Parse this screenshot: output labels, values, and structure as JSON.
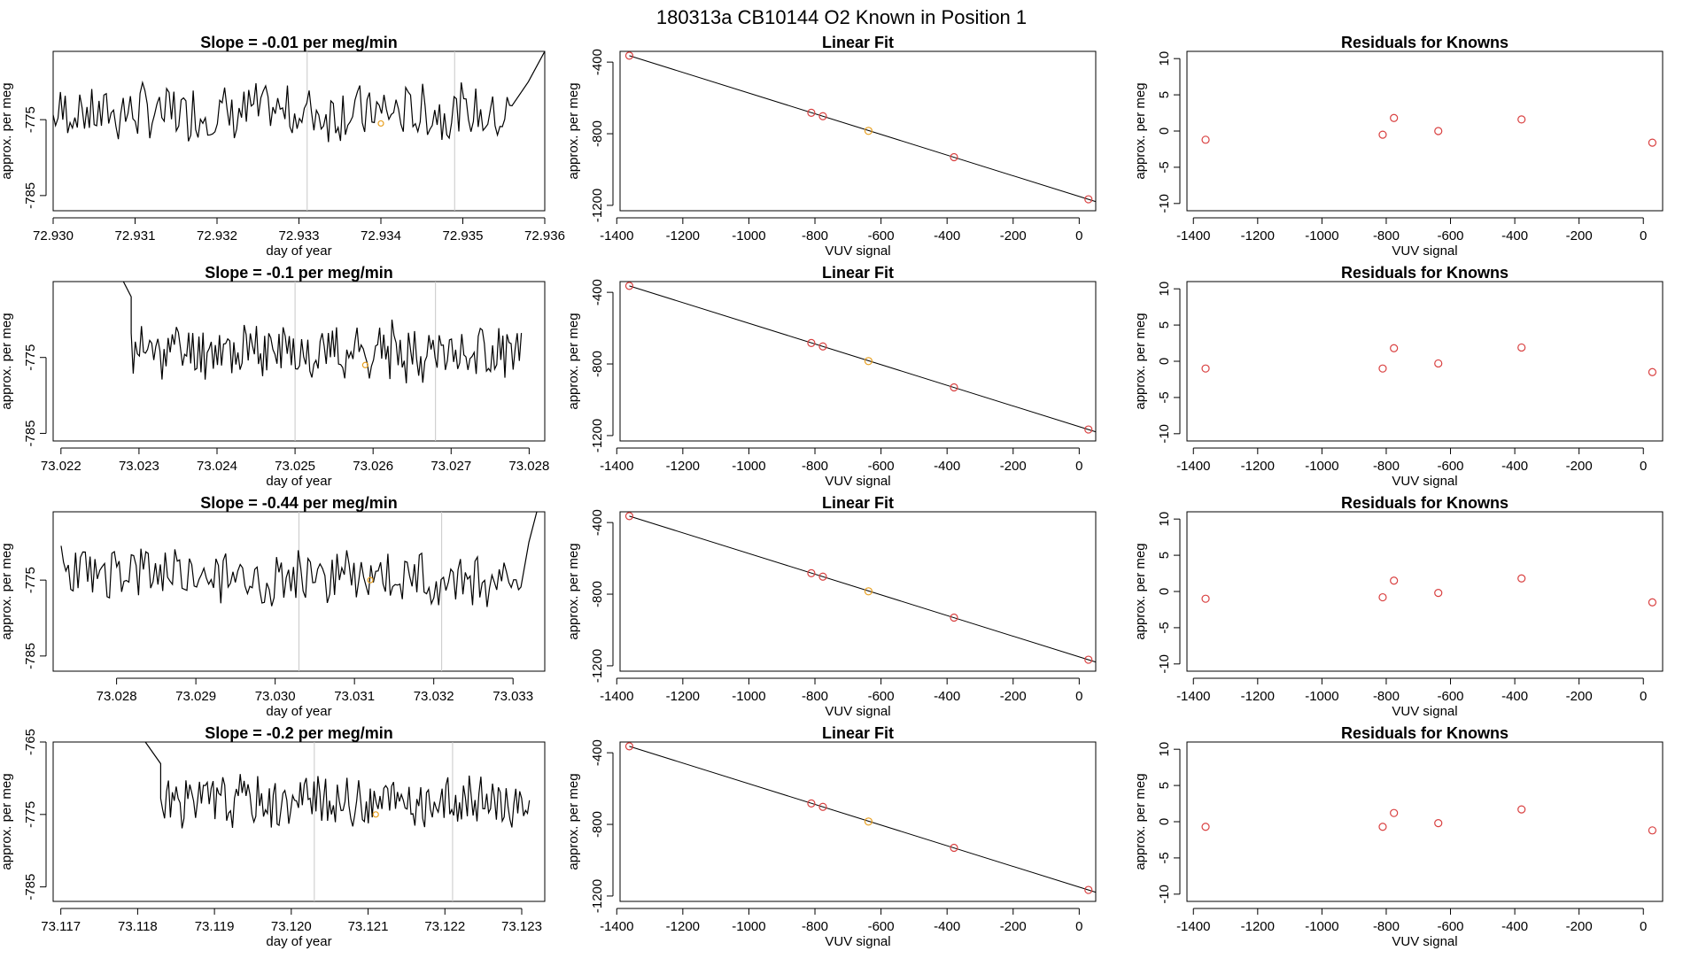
{
  "figure": {
    "title": "180313a      CB10144    O2 Known in Position  1"
  },
  "colors": {
    "line": "#000000",
    "point": "#d94040",
    "highlight": "#e8a020",
    "vline": "#c8c8c8"
  },
  "chart_data": [
    {
      "type": "line",
      "row": 0,
      "col": 0,
      "title": "Slope =  -0.01  per meg/min",
      "xlabel": "day of year",
      "ylabel": "approx. per meg",
      "xlim": [
        72.93,
        72.936
      ],
      "ylim": [
        -787,
        -766
      ],
      "xticks": [
        "72.930",
        "72.931",
        "72.932",
        "72.933",
        "72.934",
        "72.935",
        "72.936"
      ],
      "yticks": [
        "-775",
        "-785"
      ],
      "ytickvals": [
        -775,
        -785
      ],
      "vlines": [
        72.9331,
        72.9349
      ],
      "start_x": 72.93,
      "end_x": 72.9356,
      "start_y": -774,
      "trend": -0.01,
      "seed": 7,
      "tail": [
        [
          72.9358,
          -770
        ],
        [
          72.936,
          -766
        ]
      ],
      "marker": [
        72.934,
        -775.5
      ]
    },
    {
      "type": "scatter",
      "row": 0,
      "col": 1,
      "fit_line": true,
      "title": "Linear Fit",
      "xlabel": "VUV signal",
      "ylabel": "approx. per meg",
      "xlim": [
        -1390,
        50
      ],
      "ylim": [
        -1230,
        -340
      ],
      "xticks": [
        "-1400",
        "-1200",
        "-1000",
        "-800",
        "-600",
        "-400",
        "-200",
        "0"
      ],
      "yticks": [
        "-400",
        "-800",
        "-1200"
      ],
      "ytickvals": [
        -400,
        -800,
        -1200
      ],
      "x": [
        -1362,
        -811,
        -776,
        -638,
        -379,
        28
      ],
      "y": [
        -364,
        -683,
        -702,
        -784,
        -931,
        -1166
      ],
      "fit": [
        [
          -1362,
          -364
        ],
        [
          55,
          -1182
        ]
      ],
      "highlight_index": 3
    },
    {
      "type": "scatter",
      "row": 0,
      "col": 2,
      "title": "Residuals for Knowns",
      "xlabel": "VUV signal",
      "ylabel": "approx. per meg",
      "xlim": [
        -1420,
        60
      ],
      "ylim": [
        -11,
        11
      ],
      "xticks": [
        "-1400",
        "-1200",
        "-1000",
        "-800",
        "-600",
        "-400",
        "-200",
        "0"
      ],
      "yticks": [
        "10",
        "5",
        "0",
        "-5",
        "-10"
      ],
      "ytickvals": [
        10,
        5,
        0,
        -5,
        -10
      ],
      "x": [
        -1362,
        -811,
        -776,
        -638,
        -379,
        28
      ],
      "y": [
        -1.2,
        -0.5,
        1.8,
        0,
        1.6,
        -1.6
      ]
    },
    {
      "type": "line",
      "row": 1,
      "col": 0,
      "title": "Slope =  -0.1  per meg/min",
      "xlabel": "day of year",
      "ylabel": "approx. per meg",
      "xlim": [
        73.0219,
        73.0282
      ],
      "ylim": [
        -786,
        -765
      ],
      "xticks": [
        "73.022",
        "73.023",
        "73.024",
        "73.025",
        "73.026",
        "73.027",
        "73.028"
      ],
      "yticks": [
        "-775",
        "-785"
      ],
      "ytickvals": [
        -775,
        -785
      ],
      "vlines": [
        73.025,
        73.0268
      ],
      "start_x": 73.0229,
      "end_x": 73.0279,
      "start_y": -774,
      "trend": -0.3,
      "seed": 11,
      "head": [
        [
          73.0228,
          -765
        ],
        [
          73.0229,
          -767
        ]
      ],
      "marker": [
        73.0259,
        -776
      ]
    },
    {
      "type": "scatter",
      "row": 1,
      "col": 1,
      "fit_line": true,
      "title": "Linear Fit",
      "xlabel": "VUV signal",
      "ylabel": "approx. per meg",
      "xlim": [
        -1390,
        50
      ],
      "ylim": [
        -1230,
        -340
      ],
      "xticks": [
        "-1400",
        "-1200",
        "-1000",
        "-800",
        "-600",
        "-400",
        "-200",
        "0"
      ],
      "yticks": [
        "-400",
        "-800",
        "-1200"
      ],
      "ytickvals": [
        -400,
        -800,
        -1200
      ],
      "x": [
        -1362,
        -811,
        -776,
        -638,
        -379,
        28
      ],
      "y": [
        -364,
        -683,
        -702,
        -784,
        -931,
        -1166
      ],
      "fit": [
        [
          -1362,
          -364
        ],
        [
          55,
          -1182
        ]
      ],
      "highlight_index": 3
    },
    {
      "type": "scatter",
      "row": 1,
      "col": 2,
      "title": "Residuals for Knowns",
      "xlabel": "VUV signal",
      "ylabel": "approx. per meg",
      "xlim": [
        -1420,
        60
      ],
      "ylim": [
        -11,
        11
      ],
      "xticks": [
        "-1400",
        "-1200",
        "-1000",
        "-800",
        "-600",
        "-400",
        "-200",
        "0"
      ],
      "yticks": [
        "10",
        "5",
        "0",
        "-5",
        "-10"
      ],
      "ytickvals": [
        10,
        5,
        0,
        -5,
        -10
      ],
      "x": [
        -1362,
        -811,
        -776,
        -638,
        -379,
        28
      ],
      "y": [
        -1,
        -1,
        1.8,
        -0.3,
        1.9,
        -1.5
      ]
    },
    {
      "type": "line",
      "row": 2,
      "col": 0,
      "title": "Slope =  -0.44  per meg/min",
      "xlabel": "day of year",
      "ylabel": "approx. per meg",
      "xlim": [
        73.0272,
        73.0334
      ],
      "ylim": [
        -787,
        -766
      ],
      "xticks": [
        "73.028",
        "73.029",
        "73.030",
        "73.031",
        "73.032",
        "73.033"
      ],
      "ytickvals": [
        -775,
        -785
      ],
      "yticks": [
        "-775",
        "-785"
      ],
      "vlines": [
        73.0303,
        73.0321
      ],
      "start_x": 73.0273,
      "end_x": 73.0331,
      "start_y": -774,
      "trend": -1.0,
      "seed": 23,
      "tail": [
        [
          73.0332,
          -770
        ],
        [
          73.0333,
          -766
        ]
      ],
      "marker": [
        73.0312,
        -775
      ]
    },
    {
      "type": "scatter",
      "row": 2,
      "col": 1,
      "fit_line": true,
      "title": "Linear Fit",
      "xlabel": "VUV signal",
      "ylabel": "approx. per meg",
      "xlim": [
        -1390,
        50
      ],
      "ylim": [
        -1230,
        -340
      ],
      "xticks": [
        "-1400",
        "-1200",
        "-1000",
        "-800",
        "-600",
        "-400",
        "-200",
        "0"
      ],
      "yticks": [
        "-400",
        "-800",
        "-1200"
      ],
      "ytickvals": [
        -400,
        -800,
        -1200
      ],
      "x": [
        -1362,
        -811,
        -776,
        -638,
        -379,
        28
      ],
      "y": [
        -364,
        -683,
        -702,
        -784,
        -931,
        -1166
      ],
      "fit": [
        [
          -1362,
          -364
        ],
        [
          55,
          -1182
        ]
      ],
      "highlight_index": 3
    },
    {
      "type": "scatter",
      "row": 2,
      "col": 2,
      "title": "Residuals for Knowns",
      "xlabel": "VUV signal",
      "ylabel": "approx. per meg",
      "xlim": [
        -1420,
        60
      ],
      "ylim": [
        -11,
        11
      ],
      "xticks": [
        "-1400",
        "-1200",
        "-1000",
        "-800",
        "-600",
        "-400",
        "-200",
        "0"
      ],
      "yticks": [
        "10",
        "5",
        "0",
        "-5",
        "-10"
      ],
      "ytickvals": [
        10,
        5,
        0,
        -5,
        -10
      ],
      "x": [
        -1362,
        -811,
        -776,
        -638,
        -379,
        28
      ],
      "y": [
        -1,
        -0.8,
        1.5,
        -0.2,
        1.8,
        -1.5
      ]
    },
    {
      "type": "line",
      "row": 3,
      "col": 0,
      "title": "Slope =  -0.2  per meg/min",
      "xlabel": "day of year",
      "ylabel": "approx. per meg",
      "xlim": [
        73.1169,
        73.1233
      ],
      "ylim": [
        -787,
        -765
      ],
      "xticks": [
        "73.117",
        "73.118",
        "73.119",
        "73.120",
        "73.121",
        "73.122",
        "73.123"
      ],
      "yticks": [
        "-765",
        "-775",
        "-785"
      ],
      "ytickvals": [
        -765,
        -775,
        -785
      ],
      "vlines": [
        73.1203,
        73.1221
      ],
      "start_x": 73.1183,
      "end_x": 73.1231,
      "start_y": -773,
      "trend": -0.5,
      "seed": 31,
      "head": [
        [
          73.1181,
          -765
        ],
        [
          73.1183,
          -768
        ]
      ],
      "marker": [
        73.1211,
        -775
      ]
    },
    {
      "type": "scatter",
      "row": 3,
      "col": 1,
      "fit_line": true,
      "title": "Linear Fit",
      "xlabel": "VUV signal",
      "ylabel": "approx. per meg",
      "xlim": [
        -1390,
        50
      ],
      "ylim": [
        -1230,
        -340
      ],
      "xticks": [
        "-1400",
        "-1200",
        "-1000",
        "-800",
        "-600",
        "-400",
        "-200",
        "0"
      ],
      "yticks": [
        "-400",
        "-800",
        "-1200"
      ],
      "ytickvals": [
        -400,
        -800,
        -1200
      ],
      "x": [
        -1362,
        -811,
        -776,
        -638,
        -379,
        28
      ],
      "y": [
        -364,
        -683,
        -702,
        -784,
        -931,
        -1166
      ],
      "fit": [
        [
          -1362,
          -364
        ],
        [
          55,
          -1182
        ]
      ],
      "highlight_index": 3
    },
    {
      "type": "scatter",
      "row": 3,
      "col": 2,
      "title": "Residuals for Knowns",
      "xlabel": "VUV signal",
      "ylabel": "approx. per meg",
      "xlim": [
        -1420,
        60
      ],
      "ylim": [
        -11,
        11
      ],
      "xticks": [
        "-1400",
        "-1200",
        "-1000",
        "-800",
        "-600",
        "-400",
        "-200",
        "0"
      ],
      "yticks": [
        "10",
        "5",
        "0",
        "-5",
        "-10"
      ],
      "ytickvals": [
        10,
        5,
        0,
        -5,
        -10
      ],
      "x": [
        -1362,
        -811,
        -776,
        -638,
        -379,
        28
      ],
      "y": [
        -0.7,
        -0.7,
        1.2,
        -0.2,
        1.7,
        -1.2
      ]
    }
  ]
}
